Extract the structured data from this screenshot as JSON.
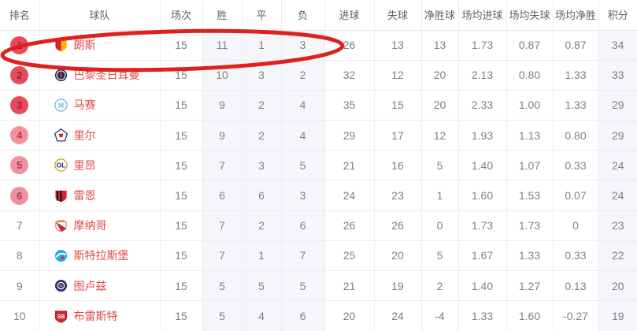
{
  "table": {
    "columns": [
      {
        "key": "rank",
        "label": "排名"
      },
      {
        "key": "team",
        "label": "球队"
      },
      {
        "key": "played",
        "label": "场次"
      },
      {
        "key": "wins",
        "label": "胜"
      },
      {
        "key": "draws",
        "label": "平"
      },
      {
        "key": "losses",
        "label": "负"
      },
      {
        "key": "gf",
        "label": "进球"
      },
      {
        "key": "ga",
        "label": "失球"
      },
      {
        "key": "gd",
        "label": "净胜球"
      },
      {
        "key": "avg_gf",
        "label": "场均进球"
      },
      {
        "key": "avg_ga",
        "label": "场均失球"
      },
      {
        "key": "avg_gd",
        "label": "场均净胜"
      },
      {
        "key": "points",
        "label": "积分"
      }
    ],
    "rows": [
      {
        "rank": "1",
        "badge": "dark",
        "id": "lens",
        "team": "朗斯",
        "logo": {
          "shape": "shield2",
          "colors": [
            "#d6252e",
            "#f2b705"
          ]
        },
        "played": "15",
        "wins": "11",
        "draws": "1",
        "losses": "3",
        "gf": "26",
        "ga": "13",
        "gd": "13",
        "avg_gf": "1.73",
        "avg_ga": "0.87",
        "avg_gd": "0.87",
        "points": "34",
        "highlighted": true
      },
      {
        "rank": "2",
        "badge": "dark",
        "id": "psg",
        "team": "巴黎圣日耳曼",
        "logo": {
          "shape": "circleStripe",
          "colors": [
            "#1b2f5b",
            "#d6252e"
          ]
        },
        "played": "15",
        "wins": "10",
        "draws": "3",
        "losses": "2",
        "gf": "32",
        "ga": "12",
        "gd": "20",
        "avg_gf": "2.13",
        "avg_ga": "0.80",
        "avg_gd": "1.33",
        "points": "33",
        "highlighted": false
      },
      {
        "rank": "3",
        "badge": "dark",
        "id": "marseille",
        "team": "马赛",
        "logo": {
          "shape": "circleText",
          "colors": [
            "#6cb8e3",
            "#6cb8e3",
            "#ffffff"
          ],
          "text": "M"
        },
        "played": "15",
        "wins": "9",
        "draws": "2",
        "losses": "4",
        "gf": "35",
        "ga": "15",
        "gd": "20",
        "avg_gf": "2.33",
        "avg_ga": "1.00",
        "avg_gd": "1.33",
        "points": "29",
        "highlighted": false
      },
      {
        "rank": "4",
        "badge": "light",
        "id": "lille",
        "team": "里尔",
        "logo": {
          "shape": "pentagon",
          "colors": [
            "#2b3a6b",
            "#d6252e"
          ]
        },
        "played": "15",
        "wins": "9",
        "draws": "2",
        "losses": "4",
        "gf": "29",
        "ga": "17",
        "gd": "12",
        "avg_gf": "1.93",
        "avg_ga": "1.13",
        "avg_gd": "0.80",
        "points": "29",
        "highlighted": false
      },
      {
        "rank": "5",
        "badge": "light",
        "id": "lyon",
        "team": "里昂",
        "logo": {
          "shape": "circleText",
          "colors": [
            "#c9a227",
            "#1b2f5b",
            "#ffffff"
          ],
          "text": "OL"
        },
        "played": "15",
        "wins": "7",
        "draws": "3",
        "losses": "5",
        "gf": "21",
        "ga": "16",
        "gd": "5",
        "avg_gf": "1.40",
        "avg_ga": "1.07",
        "avg_gd": "0.33",
        "points": "24",
        "highlighted": false
      },
      {
        "rank": "6",
        "badge": "light",
        "id": "rennes",
        "team": "雷恩",
        "logo": {
          "shape": "shieldStripes",
          "colors": [
            "#1a1a1a",
            "#d6252e"
          ]
        },
        "played": "15",
        "wins": "6",
        "draws": "6",
        "losses": "3",
        "gf": "24",
        "ga": "23",
        "gd": "1",
        "avg_gf": "1.60",
        "avg_ga": "1.53",
        "avg_gd": "0.07",
        "points": "24",
        "highlighted": false
      },
      {
        "rank": "7",
        "badge": "none",
        "id": "monaco",
        "team": "摩纳哥",
        "logo": {
          "shape": "shieldDiamond",
          "colors": [
            "#c94b4b",
            "#d6252e",
            "#e3b53e"
          ]
        },
        "played": "15",
        "wins": "7",
        "draws": "2",
        "losses": "6",
        "gf": "26",
        "ga": "26",
        "gd": "0",
        "avg_gf": "1.73",
        "avg_ga": "1.73",
        "avg_gd": "0",
        "points": "23",
        "highlighted": false
      },
      {
        "rank": "8",
        "badge": "none",
        "id": "strasbourg",
        "team": "斯特拉斯堡",
        "logo": {
          "shape": "circleSwirl",
          "colors": [
            "#2da9dd",
            "#d6252e"
          ]
        },
        "played": "15",
        "wins": "7",
        "draws": "1",
        "losses": "7",
        "gf": "25",
        "ga": "20",
        "gd": "5",
        "avg_gf": "1.67",
        "avg_ga": "1.33",
        "avg_gd": "0.33",
        "points": "22",
        "highlighted": false
      },
      {
        "rank": "9",
        "badge": "none",
        "id": "toulouse",
        "team": "图卢兹",
        "logo": {
          "shape": "circleRing",
          "colors": [
            "#37306b",
            "#7b6fae"
          ]
        },
        "played": "15",
        "wins": "5",
        "draws": "5",
        "losses": "5",
        "gf": "21",
        "ga": "19",
        "gd": "2",
        "avg_gf": "1.40",
        "avg_ga": "1.27",
        "avg_gd": "0.13",
        "points": "20",
        "highlighted": false
      },
      {
        "rank": "10",
        "badge": "none",
        "id": "brest",
        "team": "布雷斯特",
        "logo": {
          "shape": "shieldText",
          "colors": [
            "#d6252e",
            "#a8171f"
          ],
          "text": "SB"
        },
        "played": "15",
        "wins": "5",
        "draws": "4",
        "losses": "6",
        "gf": "20",
        "ga": "24",
        "gd": "-4",
        "avg_gf": "1.33",
        "avg_ga": "1.60",
        "avg_gd": "-0.27",
        "points": "19",
        "highlighted": false
      }
    ],
    "tinted_columns": [
      "wins",
      "draws",
      "losses",
      "points"
    ]
  },
  "annotation": {
    "type": "hand-drawn-ellipse",
    "circled_row_rank": "1",
    "circled_team": "朗斯",
    "color": "#e0201e"
  },
  "colors": {
    "team_link": "#e14b47",
    "badge_top3_bg": "#e64b5c",
    "badge_4to6_bg": "#f0919d",
    "tint_column_bg": "#f5f6f9"
  }
}
